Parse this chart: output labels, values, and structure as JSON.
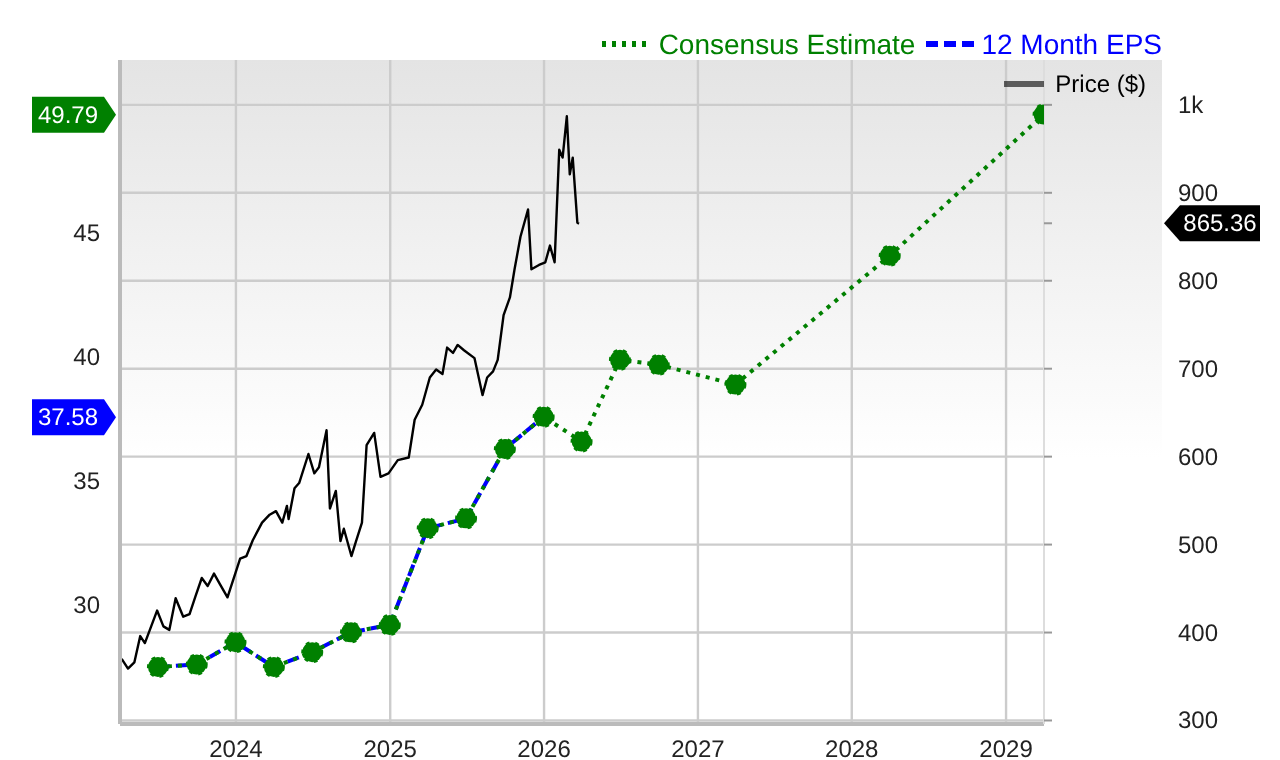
{
  "chart_data": {
    "type": "line",
    "xlim": [
      "2023-04-01",
      "2029-04-01"
    ],
    "xticks": [
      "2024",
      "2025",
      "2026",
      "2027",
      "2028",
      "2029"
    ],
    "ylim": [
      25.2,
      52
    ],
    "yticks": [
      30,
      35,
      {
        "value": 37.58,
        "label": "37.58"
      },
      40,
      45,
      {
        "value": 49.79,
        "label": "49.79"
      }
    ],
    "y2lim": [
      296,
      1051
    ],
    "y2ticks": [
      300,
      400,
      500,
      600,
      700,
      800,
      900,
      {
        "value": 865.36,
        "label": "865.36"
      },
      {
        "value": 1000,
        "label": "1k"
      }
    ],
    "grid": true,
    "legend": "top right",
    "series": [
      {
        "name": "12 Month EPS",
        "color": "#0000ff",
        "line_style": "dashed",
        "marker": "none",
        "x": [
          "2023-06-30",
          "2023-09-30",
          "2023-12-31",
          "2024-03-31",
          "2024-06-30",
          "2024-09-30",
          "2024-12-31",
          "2025-03-31",
          "2025-06-30",
          "2025-09-30",
          "2025-12-31"
        ],
        "values": [
          27.5,
          27.6,
          28.5,
          27.5,
          28.1,
          28.9,
          29.2,
          33.1,
          33.5,
          36.3,
          37.6
        ]
      },
      {
        "name": "Consensus Estimate",
        "color": "#008000",
        "line_style": "dotted",
        "marker": "circle",
        "x": [
          "2023-06-30",
          "2023-09-30",
          "2023-12-31",
          "2024-03-31",
          "2024-06-30",
          "2024-09-30",
          "2024-12-31",
          "2025-03-31",
          "2025-06-30",
          "2025-09-30",
          "2025-12-31",
          "2026-03-31",
          "2026-06-30",
          "2026-09-30",
          "2027-03-31",
          "2028-03-31",
          "2029-03-31"
        ],
        "values": [
          27.5,
          27.6,
          28.5,
          27.5,
          28.1,
          28.9,
          29.2,
          33.1,
          33.5,
          36.3,
          37.6,
          36.6,
          39.9,
          39.7,
          38.9,
          44.1,
          49.8
        ]
      },
      {
        "name": "Price ($)",
        "color": "#000000",
        "line_style": "solid",
        "marker": "none",
        "axis": "y2",
        "x": [
          "2023-04-05",
          "2023-04-20",
          "2023-05-05",
          "2023-05-19",
          "2023-05-30",
          "2023-06-28",
          "2023-07-13",
          "2023-07-27",
          "2023-08-11",
          "2023-08-29",
          "2023-09-13",
          "2023-09-27",
          "2023-10-12",
          "2023-10-26",
          "2023-11-10",
          "2023-11-24",
          "2023-12-12",
          "2024-01-11",
          "2024-01-26",
          "2024-02-10",
          "2024-03-03",
          "2024-03-21",
          "2024-04-05",
          "2024-04-20",
          "2024-05-01",
          "2024-05-05",
          "2024-05-19",
          "2024-05-30",
          "2024-06-21",
          "2024-07-05",
          "2024-07-16",
          "2024-08-03",
          "2024-08-11",
          "2024-08-25",
          "2024-09-05",
          "2024-09-13",
          "2024-10-01",
          "2024-10-12",
          "2024-10-26",
          "2024-11-06",
          "2024-11-24",
          "2024-12-09",
          "2024-12-28",
          "2025-01-19",
          "2025-02-14",
          "2025-02-28",
          "2025-03-18",
          "2025-04-05",
          "2025-04-20",
          "2025-05-05",
          "2025-05-16",
          "2025-05-30",
          "2025-06-10",
          "2025-06-25",
          "2025-07-20",
          "2025-08-08",
          "2025-08-19",
          "2025-09-02",
          "2025-09-13",
          "2025-09-27",
          "2025-10-12",
          "2025-10-23",
          "2025-11-06",
          "2025-11-24",
          "2025-12-02",
          "2025-12-20",
          "2026-01-04",
          "2026-01-15",
          "2026-01-26",
          "2026-02-06",
          "2026-02-14",
          "2026-02-24",
          "2026-03-03",
          "2026-03-10",
          "2026-03-21",
          "2026-03-25"
        ],
        "values": [
          370,
          359,
          366,
          396,
          388,
          425,
          407,
          403,
          439,
          418,
          421,
          441,
          462,
          453,
          467,
          455,
          440,
          484,
          487,
          505,
          525,
          534,
          538,
          525,
          544,
          529,
          564,
          570,
          603,
          581,
          588,
          630,
          541,
          561,
          504,
          518,
          487,
          504,
          525,
          613,
          627,
          577,
          581,
          596,
          599,
          642,
          659,
          690,
          699,
          694,
          724,
          718,
          727,
          721,
          712,
          670,
          690,
          697,
          710,
          761,
          781,
          813,
          850,
          881,
          813,
          818,
          821,
          840,
          821,
          949,
          940,
          987,
          921,
          940,
          866,
          865
        ]
      }
    ]
  }
}
